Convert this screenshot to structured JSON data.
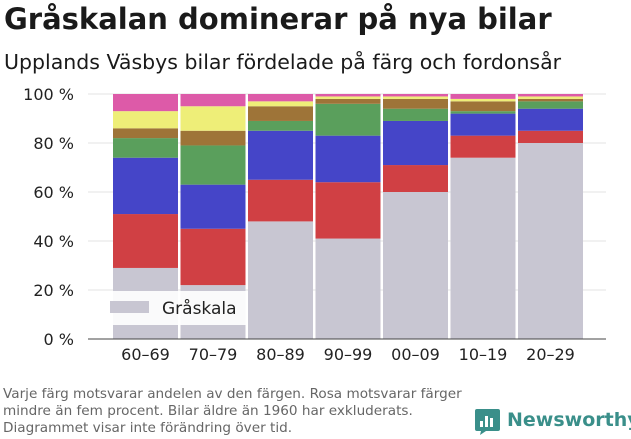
{
  "title": "Gråskalan dominerar på nya bilar",
  "subtitle": "Upplands Väsbys bilar fördelade på färg och fordonsår",
  "footnote": "Varje färg motsvarar andelen av den färgen. Rosa motsvarar färger mindre än fem procent. Bilar äldre än 1960 har exkluderats. Diagrammet visar inte förändring över tid.",
  "logo": {
    "text": "Newsworthy",
    "icon": "bar-chart-icon",
    "color": "#3a8f8a"
  },
  "chart_data": {
    "type": "bar",
    "stacked": true,
    "categories": [
      "60–69",
      "70–79",
      "80–89",
      "90–99",
      "00–09",
      "10–19",
      "20–29"
    ],
    "y_ticks": [
      "0 %",
      "20 %",
      "40 %",
      "60 %",
      "80 %",
      "100 %"
    ],
    "ylim": [
      0,
      100
    ],
    "grid": true,
    "legend_position": "bottom-left",
    "series": [
      {
        "name": "Gråskala",
        "color": "#c8c6d2",
        "values": [
          29,
          22,
          48,
          41,
          60,
          74,
          80
        ]
      },
      {
        "color": "#d04044",
        "values": [
          22,
          23,
          17,
          23,
          11,
          9,
          5
        ]
      },
      {
        "color": "#4545c8",
        "values": [
          23,
          18,
          20,
          19,
          18,
          9,
          9
        ]
      },
      {
        "color": "#5a9f5c",
        "values": [
          8,
          16,
          4,
          13,
          5,
          1,
          3
        ]
      },
      {
        "color": "#9e7438",
        "values": [
          4,
          6,
          6,
          2,
          4,
          4,
          1
        ]
      },
      {
        "color": "#eeee78",
        "values": [
          7,
          10,
          2,
          1,
          1,
          1,
          1
        ]
      },
      {
        "color": "#dd5aa8",
        "values": [
          7,
          5,
          3,
          1,
          1,
          2,
          1
        ]
      }
    ]
  }
}
